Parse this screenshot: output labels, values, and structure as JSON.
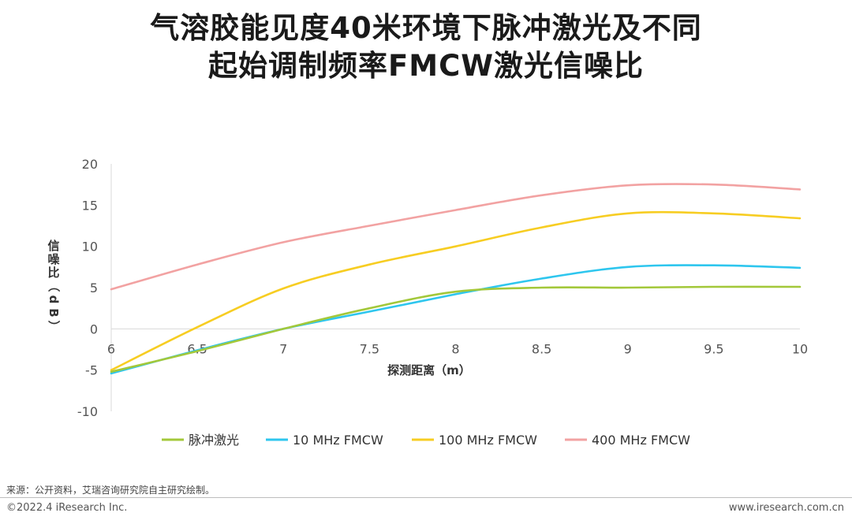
{
  "title": {
    "line1": "气溶胶能见度40米环境下脉冲激光及不同",
    "line2": "起始调制频率FMCW激光信噪比"
  },
  "chart_data": {
    "type": "line",
    "xlabel": "探测距离（m）",
    "ylabel": "信噪比（dB）",
    "xlim": [
      6,
      10
    ],
    "ylim": [
      -10,
      20
    ],
    "x_ticks": [
      "6",
      "6.5",
      "7",
      "7.5",
      "8",
      "8.5",
      "9",
      "9.5",
      "10"
    ],
    "y_ticks": [
      "20",
      "15",
      "10",
      "5",
      "0",
      "-5",
      "-10"
    ],
    "x": [
      6,
      6.5,
      7,
      7.5,
      8,
      8.5,
      9,
      9.5,
      10
    ],
    "legend_position": "bottom",
    "series": [
      {
        "name": "脉冲激光",
        "color": "#a3c83a",
        "values": [
          -5.2,
          -2.7,
          0.0,
          2.5,
          4.5,
          5.0,
          5.0,
          5.1,
          5.1
        ]
      },
      {
        "name": "10 MHz FMCW",
        "color": "#2ec6ee",
        "values": [
          -5.4,
          -2.6,
          0.0,
          2.1,
          4.2,
          6.1,
          7.5,
          7.7,
          7.4
        ]
      },
      {
        "name": "100 MHz FMCW",
        "color": "#f7cd22",
        "values": [
          -5.0,
          0.2,
          4.9,
          7.8,
          10.0,
          12.3,
          14.0,
          14.0,
          13.4
        ]
      },
      {
        "name": "400 MHz FMCW",
        "color": "#f2a2a2",
        "values": [
          4.8,
          7.8,
          10.5,
          12.5,
          14.4,
          16.2,
          17.4,
          17.5,
          16.9
        ]
      }
    ]
  },
  "footer": {
    "source": "来源：公开资料，艾瑞咨询研究院自主研究绘制。",
    "copyright": "©2022.4 iResearch Inc.",
    "website": "www.iresearch.com.cn"
  }
}
